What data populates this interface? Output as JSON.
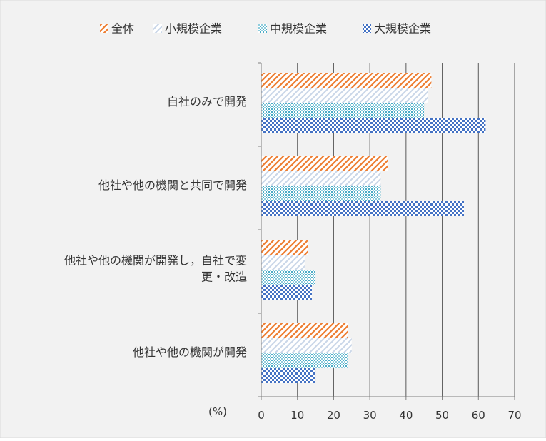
{
  "chart_data": {
    "type": "bar",
    "orientation": "horizontal",
    "categories": [
      [
        "自社のみで開発"
      ],
      [
        "他社や他の機関と共同で開発"
      ],
      [
        "他社や他の機関が開発し，自社で変",
        "更・改造"
      ],
      [
        "他社や他の機関が開発"
      ]
    ],
    "series": [
      {
        "name": "全体",
        "values": [
          47,
          35,
          13,
          24
        ],
        "color": "#ED7D31",
        "pattern": "diagonal-hatch"
      },
      {
        "name": "小規模企業",
        "values": [
          46,
          33,
          12,
          25
        ],
        "color": "#C9D6E8",
        "pattern": "light-diagonal-hatch"
      },
      {
        "name": "中規模企業",
        "values": [
          45,
          33,
          15,
          24
        ],
        "color": "#4BACC6",
        "pattern": "dots"
      },
      {
        "name": "大規模企業",
        "values": [
          62,
          56,
          14,
          15
        ],
        "color": "#4472C4",
        "pattern": "checker"
      }
    ],
    "xlim": [
      0,
      70
    ],
    "xticks": [
      0,
      10,
      20,
      30,
      40,
      50,
      60,
      70
    ],
    "unit_label": "(%)",
    "grid": true,
    "legend_position": "top"
  },
  "colors": {
    "background": "#F2F2F2",
    "grid": "#595959",
    "axis": "#808080",
    "text": "#333333"
  }
}
